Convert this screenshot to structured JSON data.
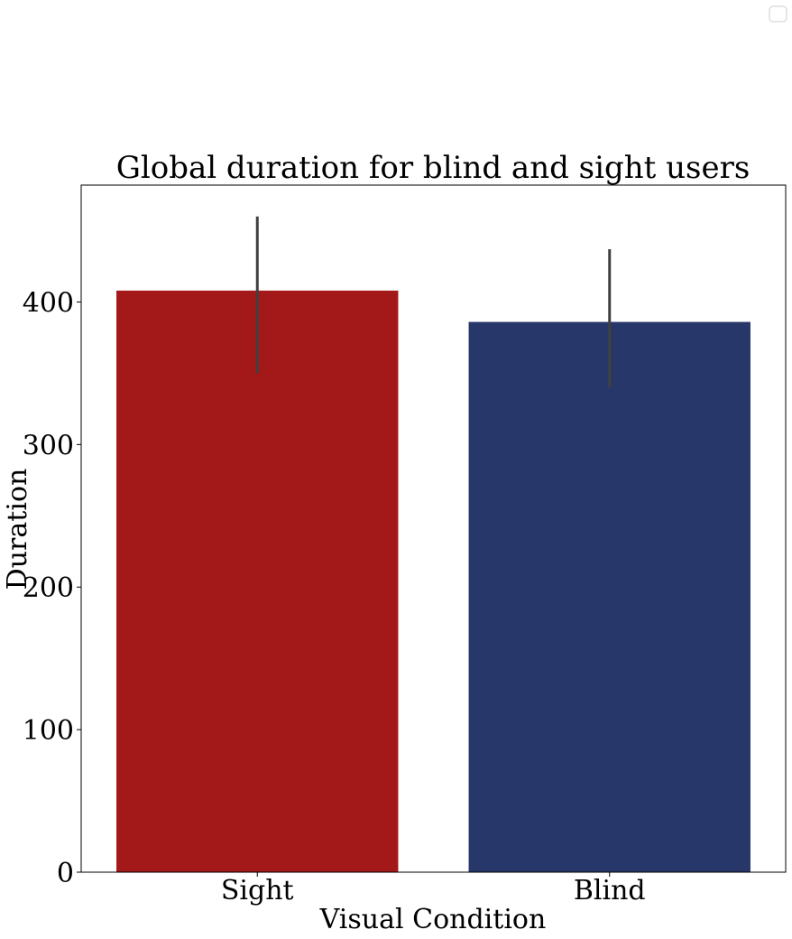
{
  "chart_data": {
    "type": "bar",
    "title": "Global duration for blind and sight users",
    "xlabel": "Visual Condition",
    "ylabel": "Duration",
    "categories": [
      "Sight",
      "Blind"
    ],
    "values": [
      408,
      386
    ],
    "error_bars": [
      {
        "low": 350,
        "high": 460
      },
      {
        "low": 340,
        "high": 437
      }
    ],
    "bar_colors": [
      "#a31818",
      "#27376a"
    ],
    "error_bar_color": "#404040",
    "ylim": [
      0,
      482
    ],
    "yticks": [
      0,
      100,
      200,
      300,
      400
    ],
    "ytick_labels": [
      "0",
      "100",
      "200",
      "300",
      "400"
    ],
    "grid": false,
    "legend": {
      "placement": "top-right",
      "entries": []
    }
  }
}
